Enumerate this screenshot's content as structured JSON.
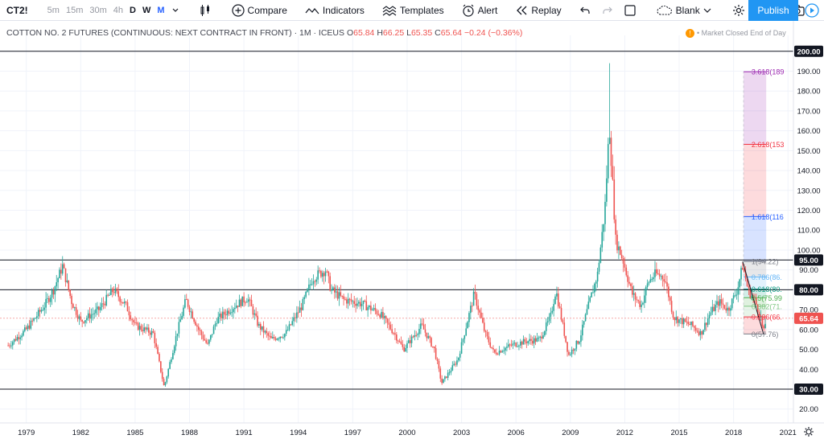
{
  "toolbar": {
    "symbol": "CT2!",
    "intervals": [
      "5m",
      "15m",
      "30m",
      "4h",
      "D",
      "W",
      "M"
    ],
    "compare": "Compare",
    "indicators": "Indicators",
    "templates": "Templates",
    "alert": "Alert",
    "replay": "Replay",
    "layout": "Blank",
    "publish": "Publish"
  },
  "legend": {
    "title": "COTTON NO. 2 FUTURES (CONTINUOUS: NEXT CONTRACT IN FRONT) · 1M · ICEUS",
    "o_key": "O",
    "o": "65.84",
    "h_key": "H",
    "h": "66.25",
    "l_key": "L",
    "l": "65.35",
    "c_key": "C",
    "c": "65.64",
    "change": "−0.24 (−0.36%)"
  },
  "market_status": {
    "icon_text": "!",
    "text": "• Market Closed  End of Day"
  },
  "colors": {
    "up": "#26a69a",
    "down": "#ef5350",
    "accent": "#2196f3"
  },
  "chart_data": {
    "type": "candlestick",
    "x_axis": {
      "labels": [
        "1979",
        "1982",
        "1985",
        "1988",
        "1991",
        "1994",
        "1997",
        "2000",
        "2003",
        "2006",
        "2009",
        "2012",
        "2015",
        "2018",
        "2021"
      ]
    },
    "y_axis": {
      "range": [
        13,
        208
      ],
      "ticks": [
        20,
        30,
        40,
        50,
        60,
        70,
        80,
        90,
        100,
        110,
        120,
        130,
        140,
        150,
        160,
        170,
        180,
        190,
        200
      ],
      "format": "0.00"
    },
    "horizontal_lines": [
      200,
      95,
      80,
      30
    ],
    "price_labels": [
      {
        "text": "200.00",
        "value": 200,
        "style": "line"
      },
      {
        "text": "95.00",
        "value": 95,
        "style": "line"
      },
      {
        "text": "80.00",
        "value": 80,
        "style": "line"
      },
      {
        "text": "65.64",
        "value": 65.64,
        "style": "last"
      },
      {
        "text": "30.00",
        "value": 30,
        "style": "line"
      }
    ],
    "series": [
      {
        "name": "Monthly OHLC (approx.)",
        "anchors": [
          [
            1978.0,
            52
          ],
          [
            1979.0,
            60
          ],
          [
            1980.0,
            72
          ],
          [
            1980.5,
            80
          ],
          [
            1981.0,
            92
          ],
          [
            1981.5,
            74
          ],
          [
            1982.0,
            64
          ],
          [
            1983.0,
            70
          ],
          [
            1983.8,
            80
          ],
          [
            1984.5,
            72
          ],
          [
            1985.0,
            62
          ],
          [
            1986.0,
            58
          ],
          [
            1986.6,
            31
          ],
          [
            1987.3,
            58
          ],
          [
            1987.8,
            75
          ],
          [
            1988.5,
            60
          ],
          [
            1989.0,
            52
          ],
          [
            1989.5,
            65
          ],
          [
            1990.5,
            72
          ],
          [
            1991.2,
            76
          ],
          [
            1991.8,
            62
          ],
          [
            1992.5,
            55
          ],
          [
            1993.3,
            58
          ],
          [
            1994.2,
            72
          ],
          [
            1994.8,
            86
          ],
          [
            1995.5,
            90
          ],
          [
            1995.8,
            80
          ],
          [
            1996.5,
            75
          ],
          [
            1997.5,
            73
          ],
          [
            1998.5,
            68
          ],
          [
            1999.3,
            58
          ],
          [
            1999.8,
            50
          ],
          [
            2000.8,
            62
          ],
          [
            2001.5,
            50
          ],
          [
            2001.9,
            33
          ],
          [
            2002.8,
            45
          ],
          [
            2003.7,
            78
          ],
          [
            2004.3,
            58
          ],
          [
            2004.8,
            48
          ],
          [
            2005.7,
            52
          ],
          [
            2006.5,
            54
          ],
          [
            2007.3,
            55
          ],
          [
            2007.9,
            66
          ],
          [
            2008.2,
            80
          ],
          [
            2008.9,
            47
          ],
          [
            2009.5,
            55
          ],
          [
            2010.0,
            72
          ],
          [
            2010.5,
            88
          ],
          [
            2010.9,
            120
          ],
          [
            2011.15,
            163
          ],
          [
            2011.5,
            105
          ],
          [
            2011.9,
            95
          ],
          [
            2012.4,
            78
          ],
          [
            2012.9,
            72
          ],
          [
            2013.3,
            84
          ],
          [
            2013.7,
            88
          ],
          [
            2014.2,
            86
          ],
          [
            2014.7,
            66
          ],
          [
            2015.2,
            64
          ],
          [
            2015.7,
            62
          ],
          [
            2016.2,
            58
          ],
          [
            2016.7,
            68
          ],
          [
            2017.2,
            74
          ],
          [
            2017.7,
            70
          ],
          [
            2018.2,
            80
          ],
          [
            2018.5,
            92
          ],
          [
            2018.8,
            80
          ],
          [
            2019.2,
            74
          ],
          [
            2019.5,
            66
          ],
          [
            2019.65,
            58
          ],
          [
            2019.8,
            65.64
          ]
        ]
      }
    ],
    "trend_line": {
      "from": [
        2018.5,
        94.22
      ],
      "to": [
        2019.65,
        57.76
      ]
    },
    "fibonacci_extension": {
      "x_range": [
        2018.55,
        2019.8
      ],
      "label_x": 2018.9,
      "levels": [
        {
          "ratio": "0",
          "price": 57.76,
          "label": "0(57.76)",
          "color": "#787b86"
        },
        {
          "ratio": "0.236",
          "price": 66.36,
          "label": "0.236(66.",
          "color": "#f23645"
        },
        {
          "ratio": "0.382",
          "price": 71.69,
          "label": "0.382(71.",
          "color": "#81c784"
        },
        {
          "ratio": "0.5",
          "price": 75.99,
          "label": "0.5(75.99",
          "color": "#4caf50"
        },
        {
          "ratio": "0.618",
          "price": 80.29,
          "label": "0.618(80.",
          "color": "#089981"
        },
        {
          "ratio": "0.786",
          "price": 86.42,
          "label": "0.786(86.",
          "color": "#64b5f6"
        },
        {
          "ratio": "1",
          "price": 94.22,
          "label": "1(94.22)",
          "color": "#787b86"
        },
        {
          "ratio": "1.618",
          "price": 116.8,
          "label": "1.618(116",
          "color": "#2962ff"
        },
        {
          "ratio": "2.618",
          "price": 153.2,
          "label": "2.618(153",
          "color": "#f23645"
        },
        {
          "ratio": "3.618",
          "price": 189.7,
          "label": "3.618(189",
          "color": "#9c27b0"
        }
      ]
    }
  }
}
